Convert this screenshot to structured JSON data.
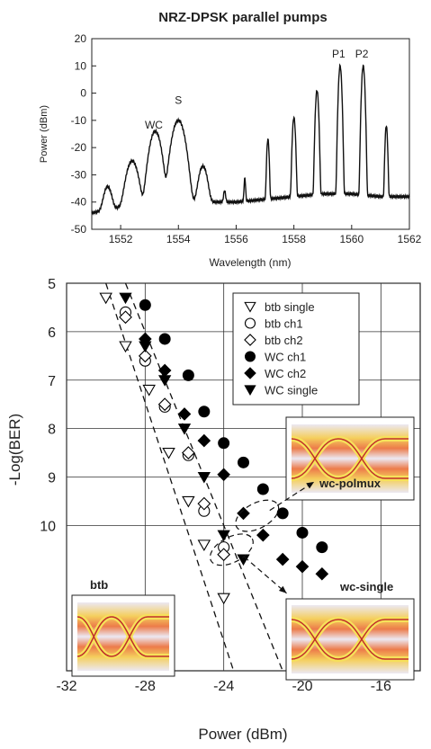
{
  "chart_data": [
    {
      "type": "line",
      "title": "NRZ-DPSK parallel pumps",
      "xlabel": "Wavelength (nm)",
      "ylabel": "Power (dBm)",
      "xlim": [
        1551,
        1562
      ],
      "ylim": [
        -50,
        20
      ],
      "xticks": [
        1552,
        1554,
        1556,
        1558,
        1560,
        1562
      ],
      "yticks": [
        20,
        10,
        0,
        -10,
        -20,
        -30,
        -40,
        -50
      ],
      "grid": false,
      "annotations": [
        {
          "text": "WC",
          "x": 1553.15,
          "y": -13
        },
        {
          "text": "S",
          "x": 1554.0,
          "y": -4
        },
        {
          "text": "P1",
          "x": 1559.55,
          "y": 13
        },
        {
          "text": "P2",
          "x": 1560.35,
          "y": 13
        }
      ],
      "peaks": [
        {
          "x": 1551.55,
          "y": -35,
          "w": 0.1
        },
        {
          "x": 1552.4,
          "y": -25,
          "w": 0.13
        },
        {
          "x": 1553.2,
          "y": -14,
          "w": 0.12
        },
        {
          "x": 1554.0,
          "y": -10,
          "w": 0.13
        },
        {
          "x": 1554.85,
          "y": -27,
          "w": 0.1
        },
        {
          "x": 1555.6,
          "y": -38,
          "w": 0.03
        },
        {
          "x": 1556.3,
          "y": -32,
          "w": 0.02
        },
        {
          "x": 1557.1,
          "y": -17,
          "w": 0.025
        },
        {
          "x": 1558.0,
          "y": -9,
          "w": 0.03
        },
        {
          "x": 1558.8,
          "y": 1,
          "w": 0.03
        },
        {
          "x": 1559.6,
          "y": 10,
          "w": 0.03
        },
        {
          "x": 1560.4,
          "y": 10,
          "w": 0.03
        },
        {
          "x": 1561.2,
          "y": -12,
          "w": 0.025
        }
      ],
      "floor": [
        [
          1551,
          -44
        ],
        [
          1552,
          -42
        ],
        [
          1553,
          -41
        ],
        [
          1554,
          -40
        ],
        [
          1555,
          -40
        ],
        [
          1556,
          -40
        ],
        [
          1557,
          -39
        ],
        [
          1558,
          -38
        ],
        [
          1559,
          -37
        ],
        [
          1560,
          -37
        ],
        [
          1561,
          -38
        ],
        [
          1562,
          -38
        ]
      ]
    },
    {
      "type": "scatter",
      "title": "",
      "xlabel": "Power (dBm)",
      "ylabel": "-Log(BER)",
      "xlim": [
        -32,
        -14
      ],
      "ylim": [
        5,
        13
      ],
      "y_inverted": true,
      "xticks": [
        -32,
        -28,
        -24,
        -20,
        -16
      ],
      "yticks": [
        5,
        6,
        7,
        8,
        9,
        10
      ],
      "grid": true,
      "legend": "top-right",
      "series": [
        {
          "name": "btb single",
          "marker": "triangle-down-open",
          "points": [
            [
              -30.0,
              5.3
            ],
            [
              -29.0,
              6.3
            ],
            [
              -27.8,
              7.2
            ],
            [
              -26.8,
              8.5
            ],
            [
              -25.8,
              9.5
            ],
            [
              -25.0,
              10.4
            ],
            [
              -24.0,
              11.5
            ]
          ]
        },
        {
          "name": "btb ch1",
          "marker": "circle-open",
          "points": [
            [
              -29.0,
              5.6
            ],
            [
              -28.0,
              6.6
            ],
            [
              -27.0,
              7.55
            ],
            [
              -25.8,
              8.55
            ],
            [
              -25.0,
              9.7
            ],
            [
              -24.0,
              10.45
            ]
          ]
        },
        {
          "name": "btb ch2",
          "marker": "diamond-open",
          "points": [
            [
              -29.0,
              5.7
            ],
            [
              -28.0,
              6.5
            ],
            [
              -27.0,
              7.5
            ],
            [
              -25.8,
              8.5
            ],
            [
              -25.0,
              9.55
            ],
            [
              -24.0,
              10.6
            ]
          ]
        },
        {
          "name": "WC ch1",
          "marker": "circle-filled",
          "points": [
            [
              -28.0,
              5.45
            ],
            [
              -27.0,
              6.15
            ],
            [
              -25.8,
              6.9
            ],
            [
              -25.0,
              7.65
            ],
            [
              -24.0,
              8.3
            ],
            [
              -23.0,
              8.7
            ],
            [
              -22.0,
              9.25
            ],
            [
              -21.0,
              9.75
            ],
            [
              -20.0,
              10.15
            ],
            [
              -19.0,
              10.45
            ]
          ]
        },
        {
          "name": "WC ch2",
          "marker": "diamond-filled",
          "points": [
            [
              -28.0,
              6.15
            ],
            [
              -27.0,
              6.8
            ],
            [
              -26.0,
              7.7
            ],
            [
              -25.0,
              8.25
            ],
            [
              -24.0,
              8.95
            ],
            [
              -23.0,
              9.75
            ],
            [
              -22.0,
              10.2
            ],
            [
              -21.0,
              10.7
            ],
            [
              -20.0,
              10.85
            ],
            [
              -19.0,
              11.0
            ]
          ]
        },
        {
          "name": "WC single",
          "marker": "triangle-down-filled",
          "points": [
            [
              -29.0,
              5.3
            ],
            [
              -28.0,
              6.3
            ],
            [
              -27.0,
              7.0
            ],
            [
              -26.0,
              8.0
            ],
            [
              -25.0,
              9.0
            ],
            [
              -24.0,
              10.2
            ],
            [
              -23.0,
              10.7
            ]
          ]
        }
      ],
      "fit_lines": [
        {
          "from": [
            -30.0,
            5.0
          ],
          "to": [
            -23.5,
            13.0
          ]
        },
        {
          "from": [
            -29.0,
            5.0
          ],
          "to": [
            -21.0,
            13.0
          ]
        }
      ],
      "callouts": [
        {
          "text": "wc-polmux",
          "ellipse_center": [
            -22.3,
            9.8
          ],
          "arrow_to": [
            -19.4,
            9.1
          ]
        },
        {
          "text": "wc-single",
          "ellipse_center": [
            -23.6,
            10.5
          ],
          "arrow_to": [
            -20.8,
            11.4
          ]
        }
      ],
      "inset_labels": [
        "btb",
        "wc-single"
      ]
    }
  ]
}
